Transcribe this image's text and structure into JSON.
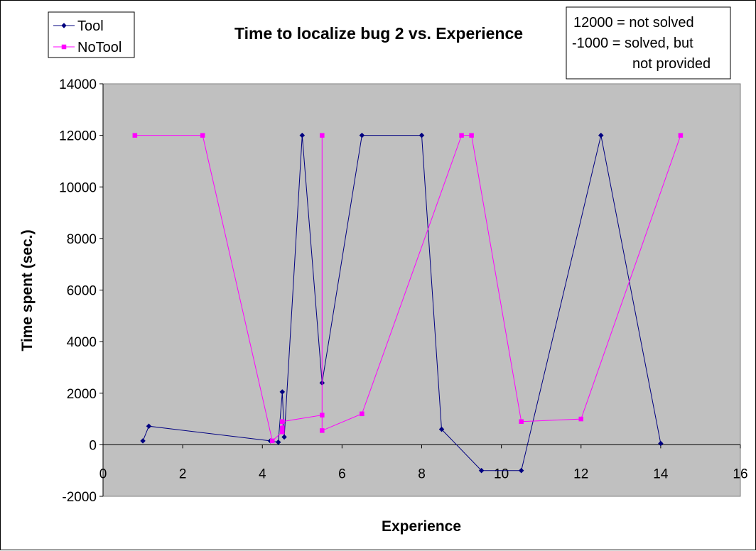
{
  "chart_data": {
    "type": "scatter",
    "title": "Time to localize bug 2 vs. Experience",
    "xlabel": "Experience",
    "ylabel": "Time spent (sec.)",
    "xlim": [
      0,
      16
    ],
    "ylim": [
      -2000,
      14000
    ],
    "x_ticks": [
      "0",
      "2",
      "4",
      "6",
      "8",
      "10",
      "12",
      "14",
      "16"
    ],
    "y_ticks": [
      "-2000",
      "0",
      "2000",
      "4000",
      "6000",
      "8000",
      "10000",
      "12000",
      "14000"
    ],
    "grid": false,
    "plot_background": "#c0c0c0",
    "legend_position": "top-left",
    "annotation_lines": [
      "12000 = not solved",
      "-1000 = solved, but",
      "not provided"
    ],
    "series": [
      {
        "name": "Tool",
        "color": "#000080",
        "marker": "diamond",
        "points": [
          [
            1.0,
            150
          ],
          [
            1.15,
            720
          ],
          [
            4.2,
            150
          ],
          [
            4.4,
            100
          ],
          [
            4.5,
            2050
          ],
          [
            4.55,
            300
          ],
          [
            5.0,
            12000
          ],
          [
            5.5,
            2400
          ],
          [
            6.5,
            12000
          ],
          [
            8.0,
            12000
          ],
          [
            8.5,
            600
          ],
          [
            9.5,
            -1000
          ],
          [
            10.5,
            -1000
          ],
          [
            12.5,
            12000
          ],
          [
            14.0,
            50
          ]
        ]
      },
      {
        "name": "NoTool",
        "color": "#ff00ff",
        "marker": "square",
        "points": [
          [
            0.8,
            12000
          ],
          [
            2.5,
            12000
          ],
          [
            4.25,
            150
          ],
          [
            4.5,
            500
          ],
          [
            4.5,
            650
          ],
          [
            4.5,
            900
          ],
          [
            5.5,
            1150
          ],
          [
            5.5,
            12000
          ],
          [
            5.5,
            550
          ],
          [
            6.5,
            1200
          ],
          [
            9.0,
            12000
          ],
          [
            9.25,
            12000
          ],
          [
            10.5,
            900
          ],
          [
            12.0,
            1000
          ],
          [
            14.5,
            12000
          ]
        ]
      }
    ]
  }
}
